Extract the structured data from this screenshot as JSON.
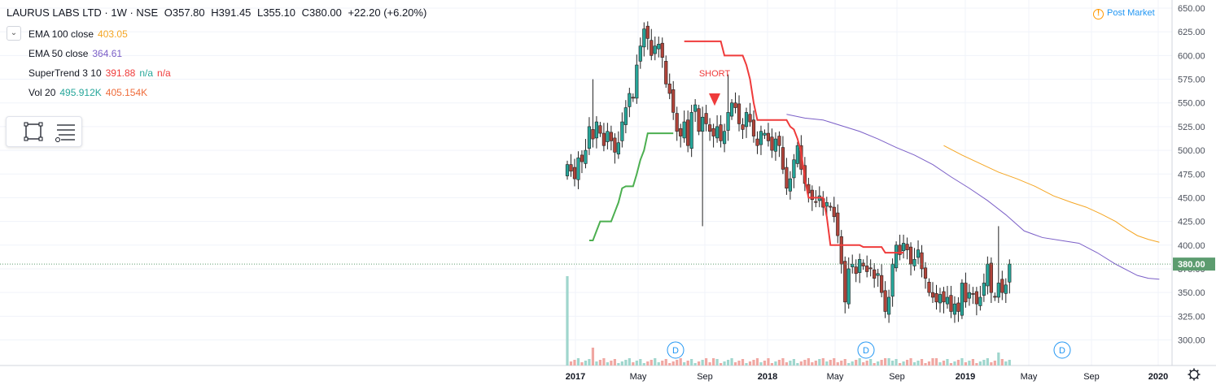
{
  "header": {
    "symbol": "LAURUS LABS LTD · 1W · NSE",
    "open": "O357.80",
    "high": "H391.45",
    "low": "L355.10",
    "close": "C380.00",
    "change": "+22.20 (+6.20%)"
  },
  "indicators": {
    "ema100": {
      "label": "EMA 100 close",
      "value": "403.05",
      "color": "#f5a623"
    },
    "ema50": {
      "label": "EMA 50 close",
      "value": "364.61",
      "color": "#7b5fc7"
    },
    "supertrend": {
      "label": "SuperTrend 3 10",
      "value": "391.88",
      "na1": "n/a",
      "na2": "n/a",
      "color": "#ef3b3b"
    },
    "vol": {
      "label": "Vol 20",
      "value1": "495.912K",
      "value2": "405.154K"
    }
  },
  "status": {
    "post_market": "Post Market"
  },
  "colors": {
    "up": "#26a69a",
    "down": "#b2443a",
    "grid": "#f0f3fa",
    "price_tag": "#5c9c6f"
  },
  "chart_data": {
    "type": "candlestick",
    "title": "LAURUS LABS LTD · 1W · NSE",
    "x_ticks": [
      "2017",
      "May",
      "Sep",
      "2018",
      "May",
      "Sep",
      "2019",
      "May",
      "Sep",
      "2020"
    ],
    "y_ticks": [
      300,
      325,
      350,
      375,
      400,
      425,
      450,
      475,
      500,
      525,
      550,
      575,
      600,
      625,
      650
    ],
    "ylim": [
      280,
      655
    ],
    "last_price": "380.00",
    "annotations": [
      {
        "text": "SHORT",
        "date": "2017-09-25",
        "color": "#ef3b3b"
      }
    ],
    "dividend_markers": [
      {
        "text": "D",
        "date": "2017-07-24"
      },
      {
        "text": "D",
        "date": "2018-07-24"
      },
      {
        "text": "D",
        "date": "2019-07-24"
      }
    ],
    "candle_closes": [
      485,
      478,
      470,
      492,
      488,
      500,
      525,
      512,
      530,
      518,
      505,
      520,
      510,
      498,
      508,
      530,
      545,
      560,
      555,
      590,
      610,
      628,
      618,
      600,
      610,
      612,
      598,
      570,
      560,
      540,
      520,
      515,
      530,
      505,
      540,
      548,
      520,
      535,
      528,
      520,
      515,
      525,
      510,
      520,
      540,
      550,
      545,
      528,
      522,
      540,
      530,
      515,
      505,
      520,
      518,
      510,
      500,
      512,
      505,
      480,
      460,
      470,
      490,
      505,
      480,
      465,
      455,
      448,
      445,
      452,
      440,
      445,
      440,
      430,
      410,
      380,
      340,
      375,
      380,
      370,
      385,
      378,
      372,
      375,
      365,
      370,
      350,
      330,
      345,
      380,
      400,
      390,
      402,
      395,
      380,
      385,
      395,
      375,
      365,
      350,
      345,
      340,
      348,
      340,
      345,
      330,
      338,
      330,
      360,
      340,
      350,
      348,
      338,
      345,
      360,
      380,
      350,
      345,
      360,
      350,
      358,
      380
    ],
    "series": [
      {
        "name": "EMA 100 close",
        "values": [
          [
            103,
            505
          ],
          [
            108,
            495
          ],
          [
            113,
            486
          ],
          [
            118,
            477
          ],
          [
            123,
            470
          ],
          [
            128,
            462
          ],
          [
            133,
            452
          ],
          [
            138,
            445
          ],
          [
            142,
            440
          ],
          [
            146,
            433
          ],
          [
            150,
            425
          ],
          [
            153,
            417
          ],
          [
            156,
            410
          ],
          [
            159,
            406
          ],
          [
            162,
            403
          ]
        ]
      },
      {
        "name": "EMA 50 close",
        "values": [
          [
            60,
            538
          ],
          [
            65,
            534
          ],
          [
            70,
            532
          ],
          [
            75,
            526
          ],
          [
            80,
            520
          ],
          [
            85,
            512
          ],
          [
            90,
            503
          ],
          [
            95,
            495
          ],
          [
            100,
            485
          ],
          [
            105,
            472
          ],
          [
            110,
            460
          ],
          [
            115,
            447
          ],
          [
            120,
            432
          ],
          [
            125,
            415
          ],
          [
            130,
            408
          ],
          [
            135,
            405
          ],
          [
            140,
            402
          ],
          [
            145,
            392
          ],
          [
            150,
            380
          ],
          [
            153,
            374
          ],
          [
            156,
            368
          ],
          [
            159,
            365
          ],
          [
            162,
            364
          ]
        ]
      },
      {
        "name": "SuperTrend 3 10",
        "values": [
          [
            6,
            405
          ],
          [
            7,
            405
          ],
          [
            8,
            415
          ],
          [
            9,
            425
          ],
          [
            12,
            425
          ],
          [
            13,
            435
          ],
          [
            14,
            445
          ],
          [
            15,
            460
          ],
          [
            16,
            462
          ],
          [
            18,
            462
          ],
          [
            19,
            475
          ],
          [
            20,
            490
          ],
          [
            21,
            500
          ],
          [
            22,
            518
          ],
          [
            29,
            518
          ],
          [
            30,
            540
          ],
          [
            31,
            562
          ],
          [
            32,
            615
          ],
          [
            42,
            615
          ],
          [
            43,
            600
          ],
          [
            48,
            600
          ],
          [
            49,
            590
          ],
          [
            50,
            575
          ],
          [
            51,
            550
          ],
          [
            52,
            532
          ],
          [
            60,
            532
          ],
          [
            61,
            525
          ],
          [
            62,
            522
          ],
          [
            63,
            512
          ],
          [
            64,
            498
          ],
          [
            65,
            470
          ],
          [
            66,
            450
          ],
          [
            70,
            450
          ],
          [
            71,
            430
          ],
          [
            72,
            400
          ],
          [
            80,
            400
          ],
          [
            81,
            398
          ],
          [
            86,
            398
          ],
          [
            87,
            392
          ],
          [
            92,
            392
          ]
        ]
      }
    ],
    "volume_label": "Vol 20"
  }
}
